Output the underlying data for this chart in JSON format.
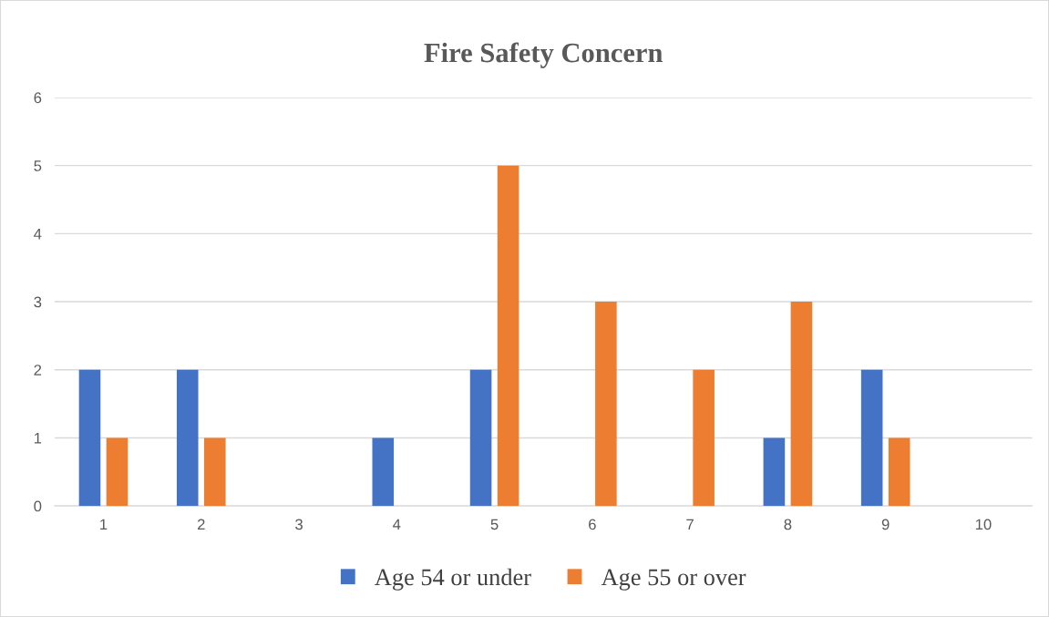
{
  "chart_data": {
    "type": "bar",
    "title": "Fire Safety Concern",
    "categories": [
      "1",
      "2",
      "3",
      "4",
      "5",
      "6",
      "7",
      "8",
      "9",
      "10"
    ],
    "series": [
      {
        "name": "Age 54 or under",
        "color": "#4472c4",
        "values": [
          2,
          2,
          0,
          1,
          2,
          0,
          0,
          1,
          2,
          0
        ]
      },
      {
        "name": "Age 55 or over",
        "color": "#ed7d31",
        "values": [
          1,
          1,
          0,
          0,
          5,
          3,
          2,
          3,
          1,
          0
        ]
      }
    ],
    "ylim": [
      0,
      6
    ],
    "yticks": [
      0,
      1,
      2,
      3,
      4,
      5,
      6
    ],
    "grid": "y",
    "legend": "bottom"
  }
}
